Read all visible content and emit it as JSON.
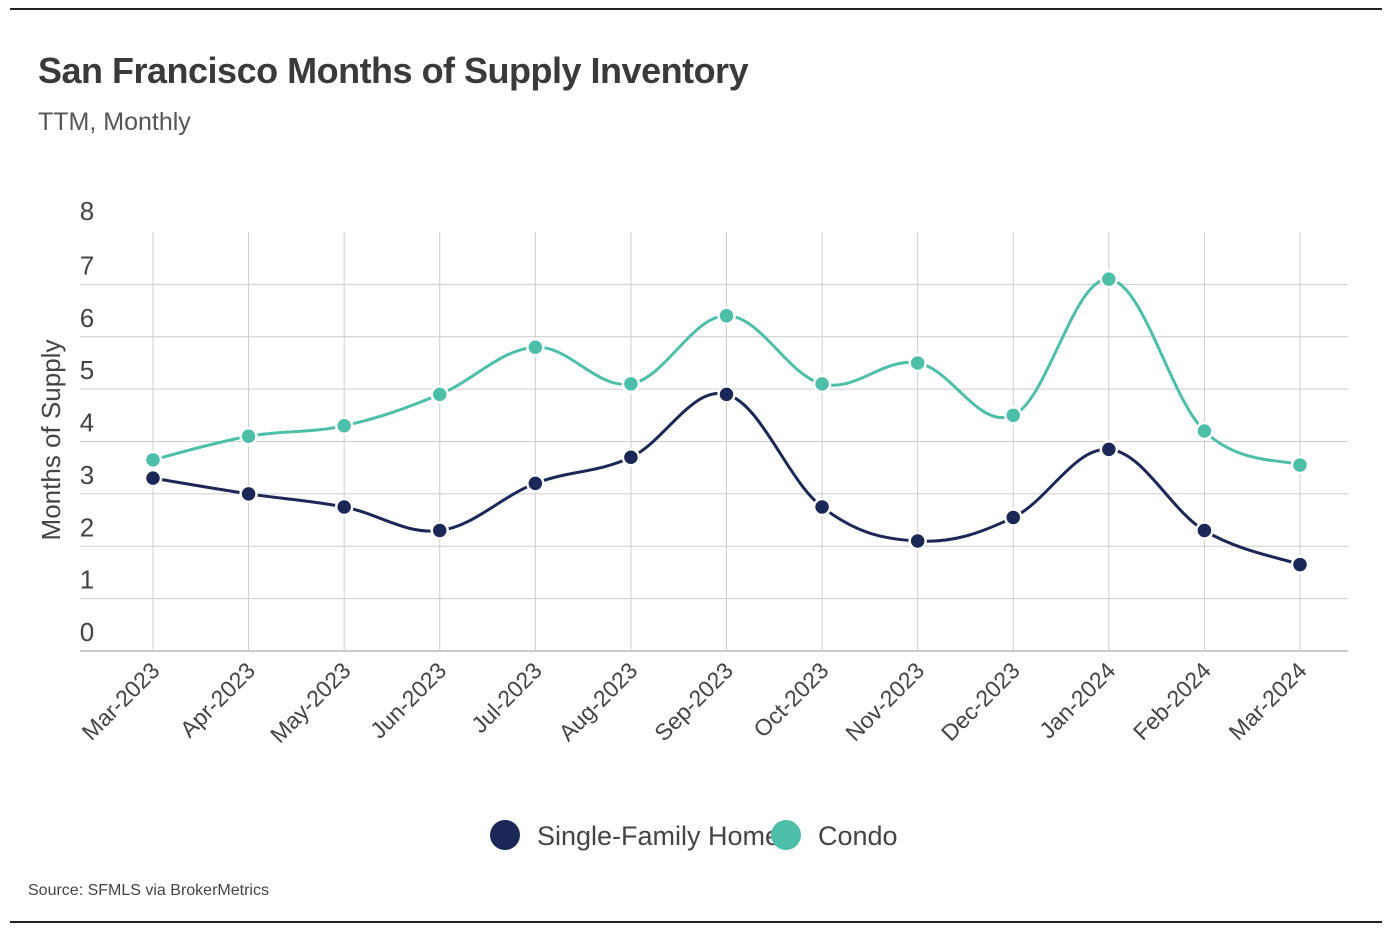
{
  "header": {
    "title": "San Francisco Months of Supply Inventory",
    "subtitle": "TTM, Monthly"
  },
  "source": "Source:  SFMLS via BrokerMetrics",
  "colors": {
    "single_family": "#1b2756",
    "condo": "#4dbfa8",
    "grid": "#cccccc",
    "text": "#444444"
  },
  "chart_data": {
    "type": "line",
    "title": "San Francisco Months of Supply Inventory",
    "subtitle": "TTM, Monthly",
    "xlabel": "",
    "ylabel": "Months of Supply",
    "ylim": [
      0,
      8
    ],
    "yticks": [
      0,
      1,
      2,
      3,
      4,
      5,
      6,
      7,
      8
    ],
    "grid": true,
    "legend": "bottom-center",
    "categories": [
      "Mar-2023",
      "Apr-2023",
      "May-2023",
      "Jun-2023",
      "Jul-2023",
      "Aug-2023",
      "Sep-2023",
      "Oct-2023",
      "Nov-2023",
      "Dec-2023",
      "Jan-2024",
      "Feb-2024",
      "Mar-2024"
    ],
    "series": [
      {
        "name": "Single-Family Home",
        "color": "#1b2756",
        "values": [
          3.3,
          3.0,
          2.75,
          2.3,
          3.2,
          3.7,
          4.9,
          2.75,
          2.1,
          2.55,
          3.85,
          2.3,
          1.65
        ]
      },
      {
        "name": "Condo",
        "color": "#4dbfa8",
        "values": [
          3.65,
          4.1,
          4.3,
          4.9,
          5.8,
          5.1,
          6.4,
          5.1,
          5.5,
          4.5,
          7.1,
          4.2,
          3.55
        ]
      }
    ]
  }
}
